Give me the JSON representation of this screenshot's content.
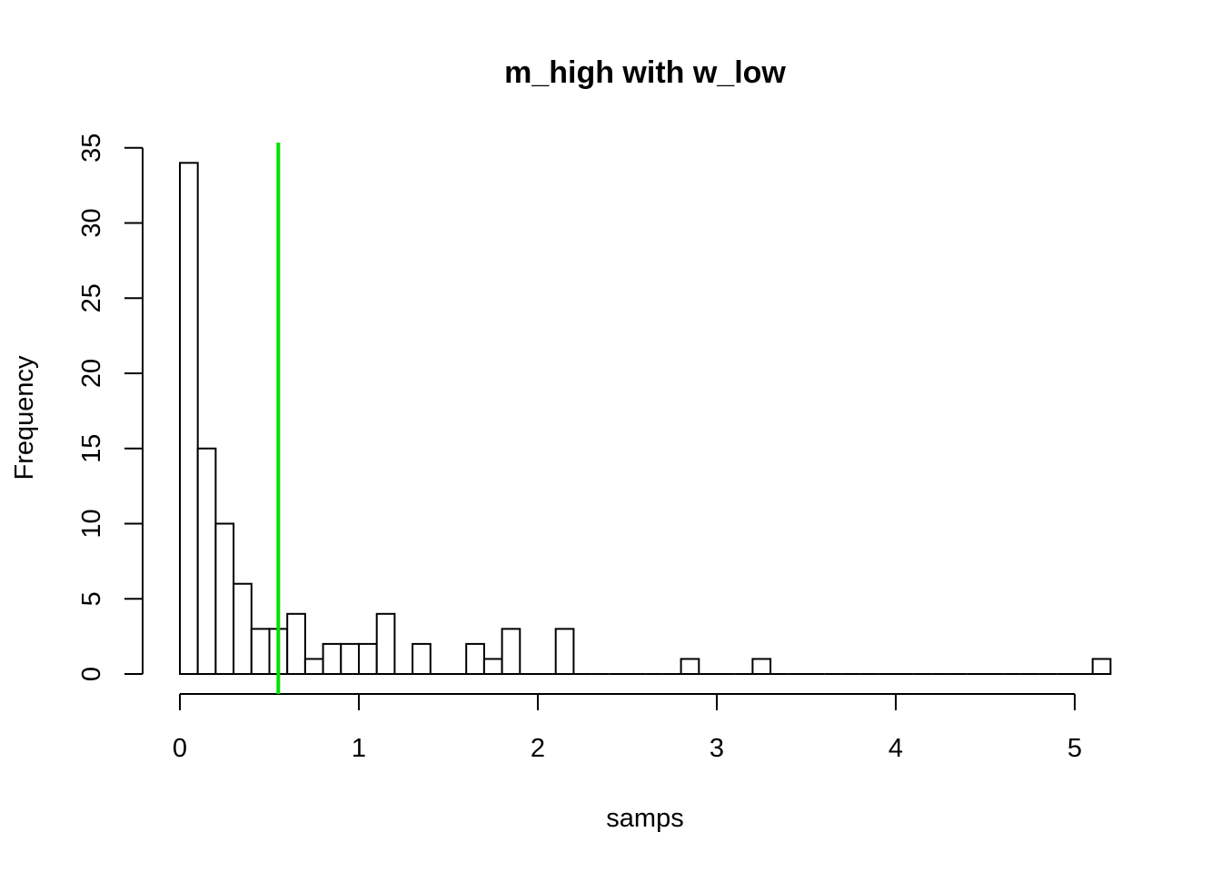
{
  "chart_data": {
    "type": "bar",
    "title": "m_high with w_low",
    "xlabel": "samps",
    "ylabel": "Frequency",
    "bin_width": 0.1,
    "bins_start": 0,
    "counts": [
      34,
      15,
      10,
      6,
      3,
      3,
      4,
      1,
      2,
      2,
      2,
      4,
      0,
      2,
      0,
      0,
      2,
      1,
      3,
      0,
      0,
      3,
      0,
      0,
      0,
      0,
      0,
      0,
      1,
      0,
      0,
      0,
      1,
      0,
      0,
      0,
      0,
      0,
      0,
      0,
      0,
      0,
      0,
      0,
      0,
      0,
      0,
      0,
      0,
      0,
      0,
      1
    ],
    "xlim": [
      0,
      5.2
    ],
    "ylim": [
      0,
      35
    ],
    "x_ticks": [
      "0",
      "1",
      "2",
      "3",
      "4",
      "5"
    ],
    "y_ticks": [
      "0",
      "5",
      "10",
      "15",
      "20",
      "25",
      "30",
      "35"
    ],
    "reference_line": {
      "x": 0.55,
      "color": "#00e000"
    },
    "grid": false,
    "legend": "none"
  }
}
